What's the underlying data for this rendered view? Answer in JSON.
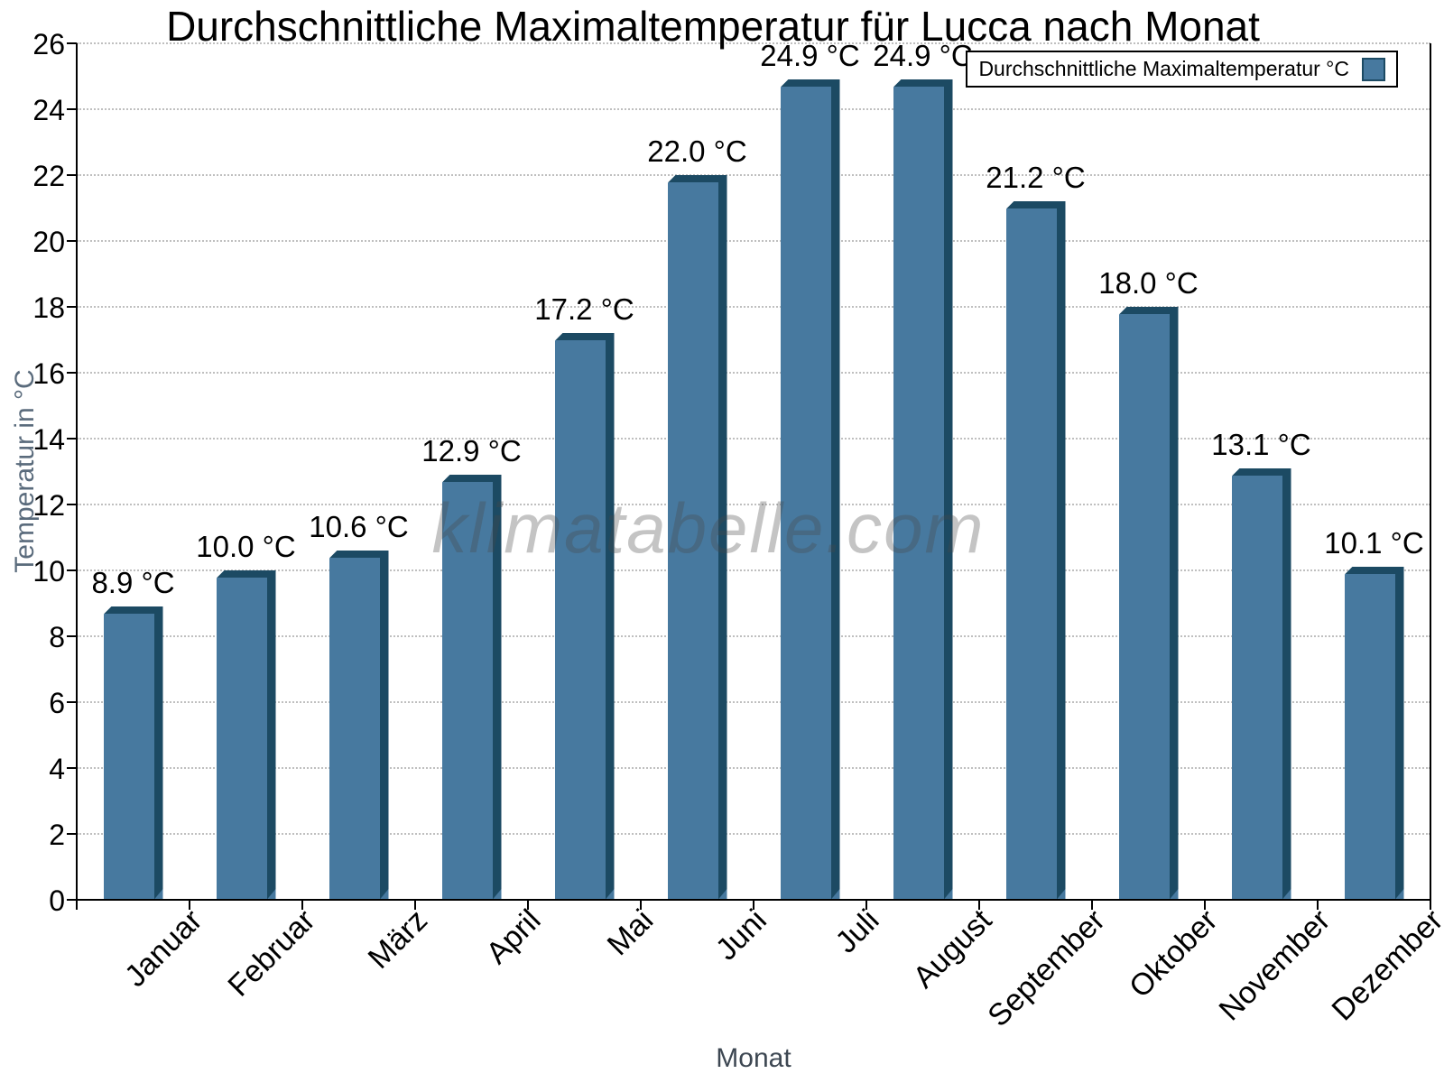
{
  "chart_data": {
    "type": "bar",
    "title": "Durchschnittliche Maximaltemperatur für Lucca nach Monat",
    "xlabel": "Monat",
    "ylabel": "Temperatur in °C",
    "categories": [
      "Januar",
      "Februar",
      "März",
      "April",
      "Mai",
      "Juni",
      "Juli",
      "August",
      "September",
      "Oktober",
      "November",
      "Dezember"
    ],
    "values": [
      8.9,
      10.0,
      10.6,
      12.9,
      17.2,
      22.0,
      24.9,
      24.9,
      21.2,
      18.0,
      13.1,
      10.1
    ],
    "value_labels": [
      "8.9 °C",
      "10.0 °C",
      "10.6 °C",
      "12.9 °C",
      "17.2 °C",
      "22.0 °C",
      "24.9 °C",
      "24.9 °C",
      "21.2 °C",
      "18.0 °C",
      "13.1 °C",
      "10.1 °C"
    ],
    "ylim": [
      0,
      26
    ],
    "ytick_step": 2,
    "grid": "horizontal-dotted",
    "legend": {
      "label": "Durchschnittliche Maximaltemperatur °C",
      "position": "top-right"
    },
    "colors": {
      "bar_fill": "#47799F",
      "bar_edge": "#1C4A63",
      "grid_line": "#bfbfbf",
      "axis": "#000000"
    }
  },
  "watermark": "klimatabelle.com"
}
